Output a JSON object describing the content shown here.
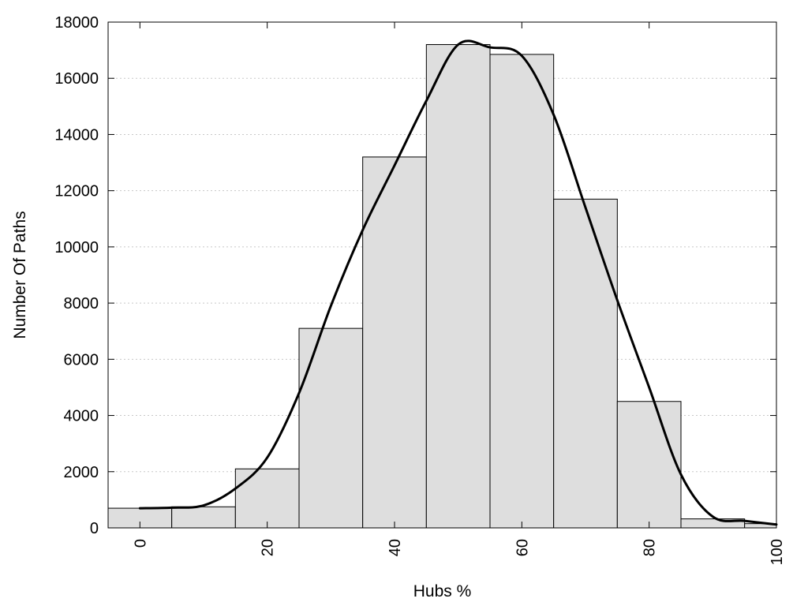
{
  "chart_data": {
    "type": "bar",
    "xlabel": "Hubs %",
    "ylabel": "Number Of Paths",
    "xlim": [
      -5,
      100
    ],
    "ylim": [
      0,
      18000
    ],
    "x_ticks": [
      0,
      20,
      40,
      60,
      80,
      100
    ],
    "y_ticks": [
      0,
      2000,
      4000,
      6000,
      8000,
      10000,
      12000,
      14000,
      16000,
      18000
    ],
    "grid": "horizontal-dotted",
    "bin_width": 10,
    "bins": [
      {
        "center": 0,
        "value": 700
      },
      {
        "center": 10,
        "value": 750
      },
      {
        "center": 20,
        "value": 2100
      },
      {
        "center": 30,
        "value": 7100
      },
      {
        "center": 40,
        "value": 13200
      },
      {
        "center": 50,
        "value": 17200
      },
      {
        "center": 60,
        "value": 16850
      },
      {
        "center": 70,
        "value": 11700
      },
      {
        "center": 80,
        "value": 4500
      },
      {
        "center": 90,
        "value": 320
      },
      {
        "center": 100,
        "value": 150
      }
    ],
    "curve": {
      "x": [
        0,
        5,
        10,
        15,
        20,
        25,
        30,
        35,
        40,
        45,
        50,
        55,
        60,
        65,
        70,
        75,
        80,
        85,
        90,
        95,
        100
      ],
      "y": [
        700,
        720,
        800,
        1400,
        2500,
        4800,
        7900,
        10600,
        12900,
        15200,
        17200,
        17100,
        16800,
        14700,
        11400,
        8100,
        5000,
        1900,
        400,
        250,
        120
      ]
    },
    "colors": {
      "bar_fill": "#dedede",
      "bar_stroke": "#000000",
      "curve": "#000000"
    }
  }
}
